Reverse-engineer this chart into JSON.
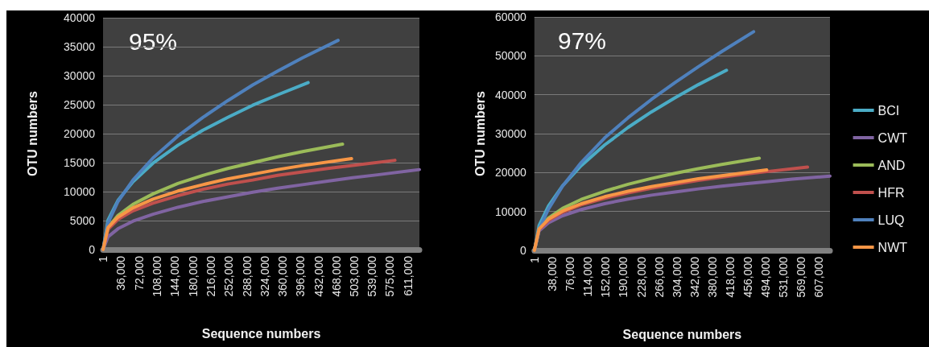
{
  "chart_data": [
    {
      "type": "line",
      "xlabel": "Sequence numbers",
      "ylabel": "OTU numbers",
      "annotations": [
        "95%"
      ],
      "legend": false,
      "grid": "y",
      "marker": "none",
      "line_style": "solid",
      "xlim": [
        1,
        634000
      ],
      "xticks": [
        1,
        {
          "value": 36000,
          "label": "36,000"
        },
        {
          "value": 72000,
          "label": "72,000"
        },
        {
          "value": 108000,
          "label": "108,000"
        },
        {
          "value": 144000,
          "label": "144,000"
        },
        {
          "value": 180000,
          "label": "180,000"
        },
        {
          "value": 216000,
          "label": "216,000"
        },
        {
          "value": 252000,
          "label": "252,000"
        },
        {
          "value": 288000,
          "label": "288,000"
        },
        {
          "value": 324000,
          "label": "324,000"
        },
        {
          "value": 360000,
          "label": "360,000"
        },
        {
          "value": 396000,
          "label": "396,000"
        },
        {
          "value": 432000,
          "label": "432,000"
        },
        {
          "value": 468000,
          "label": "468,000"
        },
        {
          "value": 503000,
          "label": "503,000"
        },
        {
          "value": 539000,
          "label": "539,000"
        },
        {
          "value": 575000,
          "label": "575,000"
        },
        {
          "value": 611000,
          "label": "611,000"
        }
      ],
      "ylim": [
        0,
        40000
      ],
      "yticks": [
        0,
        5000,
        10000,
        15000,
        20000,
        25000,
        30000,
        35000,
        40000
      ],
      "series": [
        {
          "color": "#4bacc6",
          "x": [
            1,
            10000,
            30000,
            60000,
            100000,
            150000,
            200000,
            250000,
            300000,
            350000,
            411000
          ],
          "values": [
            0,
            5100,
            8500,
            11700,
            14900,
            18000,
            20600,
            22800,
            24900,
            26700,
            28800
          ]
        },
        {
          "color": "#8064a2",
          "x": [
            1,
            10000,
            30000,
            60000,
            100000,
            150000,
            200000,
            250000,
            300000,
            350000,
            400000,
            450000,
            500000,
            550000,
            634000
          ],
          "values": [
            0,
            2200,
            3600,
            4900,
            6100,
            7300,
            8300,
            9100,
            9900,
            10600,
            11200,
            11800,
            12400,
            12900,
            13800
          ]
        },
        {
          "color": "#9bbb59",
          "x": [
            1,
            10000,
            30000,
            60000,
            100000,
            150000,
            200000,
            250000,
            300000,
            350000,
            400000,
            480000
          ],
          "values": [
            0,
            3800,
            5900,
            7800,
            9600,
            11400,
            12800,
            14000,
            15000,
            16000,
            16900,
            18200
          ]
        },
        {
          "color": "#c0504d",
          "x": [
            1,
            10000,
            30000,
            60000,
            100000,
            150000,
            200000,
            250000,
            300000,
            350000,
            400000,
            450000,
            500000,
            585000
          ],
          "values": [
            0,
            3500,
            5200,
            6700,
            8000,
            9300,
            10400,
            11300,
            12000,
            12800,
            13400,
            14000,
            14500,
            15400
          ]
        },
        {
          "color": "#4f81bd",
          "x": [
            1,
            10000,
            30000,
            60000,
            100000,
            150000,
            200000,
            250000,
            300000,
            350000,
            400000,
            471000
          ],
          "values": [
            0,
            4600,
            8300,
            12000,
            15800,
            19600,
            22800,
            25700,
            28400,
            30800,
            33100,
            36100
          ]
        },
        {
          "color": "#f79646",
          "x": [
            1,
            10000,
            30000,
            60000,
            100000,
            150000,
            200000,
            250000,
            300000,
            350000,
            400000,
            498000
          ],
          "values": [
            0,
            3800,
            5600,
            7200,
            8700,
            10100,
            11200,
            12200,
            13000,
            13800,
            14500,
            15700
          ]
        }
      ]
    },
    {
      "type": "line",
      "xlabel": "Sequence numbers",
      "ylabel": "OTU numbers",
      "annotations": [
        "97%"
      ],
      "legend": "right",
      "grid": "y",
      "marker": "none",
      "line_style": "solid",
      "xlim": [
        1,
        631000
      ],
      "xticks": [
        1,
        {
          "value": 38000,
          "label": "38,000"
        },
        {
          "value": 76000,
          "label": "76,000"
        },
        {
          "value": 114000,
          "label": "114,000"
        },
        {
          "value": 152000,
          "label": "152,000"
        },
        {
          "value": 190000,
          "label": "190,000"
        },
        {
          "value": 228000,
          "label": "228,000"
        },
        {
          "value": 266000,
          "label": "266,000"
        },
        {
          "value": 304000,
          "label": "304,000"
        },
        {
          "value": 342000,
          "label": "342,000"
        },
        {
          "value": 380000,
          "label": "380,000"
        },
        {
          "value": 418000,
          "label": "418,000"
        },
        {
          "value": 456000,
          "label": "456,000"
        },
        {
          "value": 494000,
          "label": "494,000"
        },
        {
          "value": 531000,
          "label": "531,000"
        },
        {
          "value": 569000,
          "label": "569,000"
        },
        {
          "value": 607000,
          "label": "607,000"
        }
      ],
      "ylim": [
        0,
        60000
      ],
      "yticks": [
        0,
        10000,
        20000,
        30000,
        40000,
        50000,
        60000
      ],
      "series": [
        {
          "name": "BCI",
          "color": "#4bacc6",
          "x": [
            1,
            10000,
            30000,
            60000,
            100000,
            150000,
            200000,
            250000,
            300000,
            350000,
            410000
          ],
          "values": [
            0,
            6400,
            11400,
            16600,
            21800,
            27100,
            31600,
            35600,
            39200,
            42600,
            46300
          ]
        },
        {
          "name": "CWT",
          "color": "#8064a2",
          "x": [
            1,
            10000,
            30000,
            60000,
            100000,
            150000,
            200000,
            250000,
            300000,
            350000,
            400000,
            450000,
            500000,
            550000,
            631000
          ],
          "values": [
            0,
            5000,
            7100,
            8900,
            10500,
            12000,
            13200,
            14200,
            15000,
            15800,
            16500,
            17100,
            17700,
            18300,
            19100
          ]
        },
        {
          "name": "AND",
          "color": "#9bbb59",
          "x": [
            1,
            10000,
            30000,
            60000,
            100000,
            150000,
            200000,
            250000,
            300000,
            350000,
            400000,
            480000
          ],
          "values": [
            0,
            5400,
            8300,
            10800,
            13100,
            15200,
            17000,
            18500,
            19800,
            21000,
            22100,
            23700
          ]
        },
        {
          "name": "HFR",
          "color": "#c0504d",
          "x": [
            1,
            10000,
            30000,
            60000,
            100000,
            150000,
            200000,
            250000,
            300000,
            350000,
            400000,
            450000,
            500000,
            583000
          ],
          "values": [
            0,
            5300,
            7700,
            9800,
            11700,
            13400,
            14800,
            16000,
            17000,
            18000,
            18800,
            19600,
            20300,
            21400
          ]
        },
        {
          "name": "LUQ",
          "color": "#4f81bd",
          "x": [
            1,
            10000,
            30000,
            60000,
            100000,
            150000,
            200000,
            250000,
            300000,
            350000,
            400000,
            468000
          ],
          "values": [
            0,
            5400,
            10600,
            16500,
            22600,
            28900,
            34100,
            38800,
            43100,
            47200,
            51100,
            56200
          ]
        },
        {
          "name": "NWT",
          "color": "#f79646",
          "x": [
            1,
            10000,
            30000,
            60000,
            100000,
            150000,
            200000,
            250000,
            300000,
            350000,
            400000,
            496000
          ],
          "values": [
            0,
            5500,
            8000,
            10100,
            12000,
            13800,
            15200,
            16400,
            17400,
            18400,
            19200,
            20700
          ]
        }
      ]
    }
  ]
}
